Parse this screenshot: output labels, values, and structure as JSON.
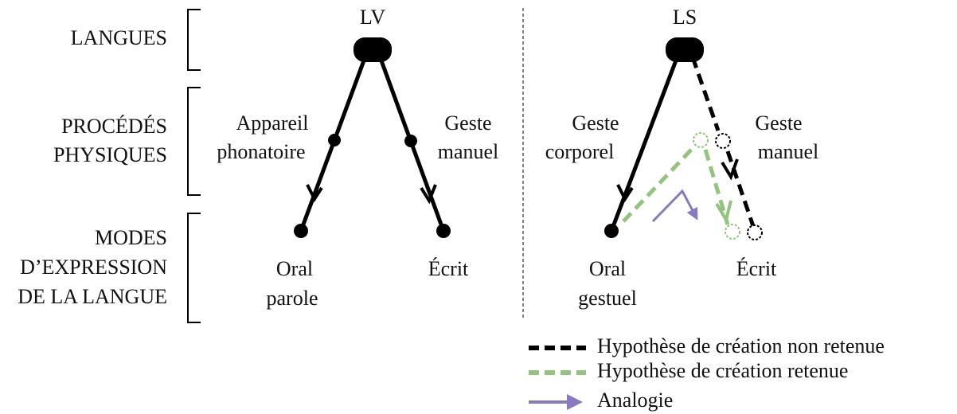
{
  "rows": [
    {
      "lines": [
        "LANGUES"
      ]
    },
    {
      "lines": [
        "PROCÉDÉS",
        "PHYSIQUES"
      ]
    },
    {
      "lines": [
        "MODES",
        "D’EXPRESSION",
        "DE LA LANGUE"
      ]
    }
  ],
  "trees": [
    {
      "root": "LV",
      "left_process": [
        "Appareil",
        "phonatoire"
      ],
      "right_process": [
        "Geste",
        "manuel"
      ],
      "left_mode": [
        "Oral",
        "parole"
      ],
      "right_mode": [
        "Écrit"
      ]
    },
    {
      "root": "LS",
      "left_process": [
        "Geste",
        "corporel"
      ],
      "right_process": [
        "Geste",
        "manuel"
      ],
      "left_mode": [
        "Oral",
        "gestuel"
      ],
      "right_mode": [
        "Écrit"
      ]
    }
  ],
  "legend": [
    {
      "label": "Hypothèse de création non retenue"
    },
    {
      "label": "Hypothèse de création retenue"
    },
    {
      "label": "Analogie"
    }
  ]
}
